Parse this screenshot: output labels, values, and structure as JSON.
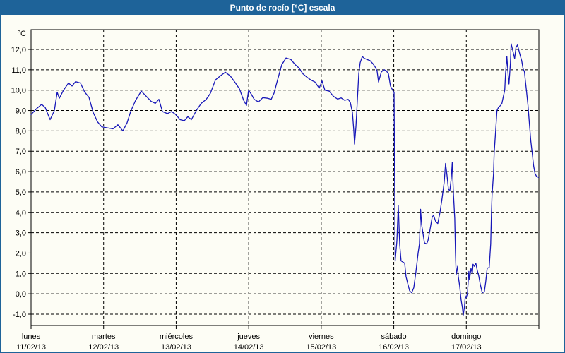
{
  "window": {
    "title": "Punto de rocío [°C] escala",
    "title_bar_color": "#1e6399",
    "background_color": "#fdfdf5",
    "border_color": "#1e6399"
  },
  "chart_data": {
    "type": "line",
    "title": "Punto de rocío [°C] escala",
    "ylabel": "°C",
    "xlabel": "",
    "ylim": [
      -1.55,
      13.0
    ],
    "y_gridline_range": [
      -1,
      12
    ],
    "y_tick_labels": [
      "12,0",
      "11,0",
      "10,0",
      "9,0",
      "8,0",
      "7,0",
      "6,0",
      "5,0",
      "4,0",
      "3,0",
      "2,0",
      "1,0",
      "0,0",
      "-1,0"
    ],
    "y_tick_values": [
      12,
      11,
      10,
      9,
      8,
      7,
      6,
      5,
      4,
      3,
      2,
      1,
      0,
      -1
    ],
    "grid": "dashed",
    "legend": "none",
    "line_color": "#1717b8",
    "grid_color": "#000000",
    "x_days": [
      {
        "weekday": "lunes",
        "date": "11/02/13"
      },
      {
        "weekday": "martes",
        "date": "12/02/13"
      },
      {
        "weekday": "miércoles",
        "date": "13/02/13"
      },
      {
        "weekday": "jueves",
        "date": "14/02/13"
      },
      {
        "weekday": "viernes",
        "date": "15/02/13"
      },
      {
        "weekday": "sábado",
        "date": "16/02/13"
      },
      {
        "weekday": "domingo",
        "date": "17/02/13"
      }
    ],
    "series": [
      {
        "name": "Punto de rocío",
        "x_unit": "days_from_2013-02-11",
        "y_unit": "°C",
        "points": [
          [
            0.0,
            8.8
          ],
          [
            0.078,
            9.1
          ],
          [
            0.146,
            9.3
          ],
          [
            0.195,
            9.15
          ],
          [
            0.263,
            8.55
          ],
          [
            0.321,
            9.0
          ],
          [
            0.36,
            9.9
          ],
          [
            0.389,
            9.6
          ],
          [
            0.448,
            10.0
          ],
          [
            0.516,
            10.35
          ],
          [
            0.565,
            10.2
          ],
          [
            0.613,
            10.42
          ],
          [
            0.681,
            10.35
          ],
          [
            0.74,
            9.9
          ],
          [
            0.798,
            9.65
          ],
          [
            0.857,
            8.9
          ],
          [
            0.915,
            8.45
          ],
          [
            0.974,
            8.2
          ],
          [
            1.051,
            8.15
          ],
          [
            1.129,
            8.1
          ],
          [
            1.197,
            8.3
          ],
          [
            1.266,
            8.0
          ],
          [
            1.324,
            8.4
          ],
          [
            1.373,
            8.95
          ],
          [
            1.441,
            9.5
          ],
          [
            1.519,
            9.95
          ],
          [
            1.587,
            9.7
          ],
          [
            1.655,
            9.45
          ],
          [
            1.713,
            9.35
          ],
          [
            1.762,
            9.55
          ],
          [
            1.811,
            8.95
          ],
          [
            1.879,
            8.85
          ],
          [
            1.937,
            8.95
          ],
          [
            1.996,
            8.8
          ],
          [
            2.054,
            8.55
          ],
          [
            2.113,
            8.5
          ],
          [
            2.161,
            8.7
          ],
          [
            2.21,
            8.55
          ],
          [
            2.278,
            9.0
          ],
          [
            2.346,
            9.35
          ],
          [
            2.414,
            9.55
          ],
          [
            2.473,
            9.85
          ],
          [
            2.541,
            10.5
          ],
          [
            2.609,
            10.7
          ],
          [
            2.677,
            10.88
          ],
          [
            2.745,
            10.7
          ],
          [
            2.804,
            10.42
          ],
          [
            2.872,
            10.07
          ],
          [
            2.93,
            9.5
          ],
          [
            2.969,
            9.25
          ],
          [
            2.999,
            10.0
          ],
          [
            3.037,
            9.8
          ],
          [
            3.076,
            9.55
          ],
          [
            3.135,
            9.42
          ],
          [
            3.193,
            9.63
          ],
          [
            3.261,
            9.6
          ],
          [
            3.31,
            9.55
          ],
          [
            3.349,
            9.85
          ],
          [
            3.398,
            10.5
          ],
          [
            3.456,
            11.25
          ],
          [
            3.515,
            11.58
          ],
          [
            3.583,
            11.5
          ],
          [
            3.641,
            11.25
          ],
          [
            3.69,
            11.1
          ],
          [
            3.748,
            10.8
          ],
          [
            3.797,
            10.65
          ],
          [
            3.856,
            10.5
          ],
          [
            3.914,
            10.4
          ],
          [
            3.972,
            10.1
          ],
          [
            4.011,
            10.45
          ],
          [
            4.05,
            10.0
          ],
          [
            4.109,
            9.95
          ],
          [
            4.167,
            9.7
          ],
          [
            4.225,
            9.56
          ],
          [
            4.274,
            9.62
          ],
          [
            4.323,
            9.5
          ],
          [
            4.371,
            9.55
          ],
          [
            4.401,
            9.4
          ],
          [
            4.43,
            8.9
          ],
          [
            4.449,
            8.0
          ],
          [
            4.459,
            7.35
          ],
          [
            4.478,
            8.2
          ],
          [
            4.498,
            9.5
          ],
          [
            4.517,
            10.8
          ],
          [
            4.537,
            11.35
          ],
          [
            4.566,
            11.65
          ],
          [
            4.595,
            11.56
          ],
          [
            4.634,
            11.5
          ],
          [
            4.673,
            11.45
          ],
          [
            4.712,
            11.3
          ],
          [
            4.741,
            11.15
          ],
          [
            4.77,
            10.95
          ],
          [
            4.79,
            10.4
          ],
          [
            4.829,
            10.9
          ],
          [
            4.868,
            11.0
          ],
          [
            4.897,
            10.95
          ],
          [
            4.926,
            10.8
          ],
          [
            4.955,
            10.2
          ],
          [
            4.985,
            10.0
          ],
          [
            5.004,
            9.9
          ],
          [
            5.019,
            1.6
          ],
          [
            5.043,
            2.6
          ],
          [
            5.062,
            4.35
          ],
          [
            5.082,
            2.4
          ],
          [
            5.101,
            1.62
          ],
          [
            5.13,
            1.55
          ],
          [
            5.15,
            1.5
          ],
          [
            5.169,
            0.85
          ],
          [
            5.189,
            0.55
          ],
          [
            5.218,
            0.15
          ],
          [
            5.247,
            0.05
          ],
          [
            5.276,
            0.3
          ],
          [
            5.306,
            1.1
          ],
          [
            5.335,
            2.0
          ],
          [
            5.354,
            2.45
          ],
          [
            5.369,
            4.15
          ],
          [
            5.384,
            3.4
          ],
          [
            5.403,
            2.95
          ],
          [
            5.423,
            2.5
          ],
          [
            5.452,
            2.45
          ],
          [
            5.471,
            2.6
          ],
          [
            5.5,
            3.15
          ],
          [
            5.53,
            3.78
          ],
          [
            5.549,
            3.85
          ],
          [
            5.578,
            3.55
          ],
          [
            5.607,
            3.45
          ],
          [
            5.637,
            4.0
          ],
          [
            5.666,
            4.7
          ],
          [
            5.695,
            5.5
          ],
          [
            5.714,
            6.4
          ],
          [
            5.734,
            5.8
          ],
          [
            5.753,
            5.15
          ],
          [
            5.772,
            5.05
          ],
          [
            5.792,
            5.65
          ],
          [
            5.806,
            6.45
          ],
          [
            5.821,
            5.0
          ],
          [
            5.84,
            3.7
          ],
          [
            5.85,
            2.0
          ],
          [
            5.86,
            0.95
          ],
          [
            5.879,
            1.35
          ],
          [
            5.889,
            0.85
          ],
          [
            5.908,
            0.4
          ],
          [
            5.928,
            -0.3
          ],
          [
            5.947,
            -0.7
          ],
          [
            5.957,
            -1.05
          ],
          [
            5.976,
            -0.6
          ],
          [
            5.986,
            -0.1
          ],
          [
            5.996,
            -0.2
          ],
          [
            6.015,
            0.0
          ],
          [
            6.035,
            1.1
          ],
          [
            6.044,
            0.7
          ],
          [
            6.064,
            1.25
          ],
          [
            6.083,
            1.0
          ],
          [
            6.093,
            1.45
          ],
          [
            6.112,
            1.35
          ],
          [
            6.132,
            1.5
          ],
          [
            6.151,
            1.15
          ],
          [
            6.171,
            0.9
          ],
          [
            6.19,
            0.5
          ],
          [
            6.219,
            0.05
          ],
          [
            6.248,
            0.1
          ],
          [
            6.268,
            0.6
          ],
          [
            6.287,
            1.25
          ],
          [
            6.316,
            1.3
          ],
          [
            6.336,
            2.45
          ],
          [
            6.346,
            3.9
          ],
          [
            6.355,
            4.85
          ],
          [
            6.375,
            5.9
          ],
          [
            6.384,
            6.9
          ],
          [
            6.404,
            8.0
          ],
          [
            6.423,
            9.0
          ],
          [
            6.443,
            9.15
          ],
          [
            6.472,
            9.25
          ],
          [
            6.491,
            9.35
          ],
          [
            6.511,
            9.7
          ],
          [
            6.53,
            10.0
          ],
          [
            6.54,
            10.8
          ],
          [
            6.559,
            11.65
          ],
          [
            6.579,
            10.6
          ],
          [
            6.588,
            10.3
          ],
          [
            6.608,
            11.3
          ],
          [
            6.617,
            12.28
          ],
          [
            6.637,
            12.0
          ],
          [
            6.656,
            11.7
          ],
          [
            6.666,
            11.55
          ],
          [
            6.685,
            12.1
          ],
          [
            6.705,
            12.22
          ],
          [
            6.724,
            11.95
          ],
          [
            6.743,
            11.7
          ],
          [
            6.763,
            11.45
          ],
          [
            6.782,
            11.05
          ],
          [
            6.801,
            10.9
          ],
          [
            6.811,
            10.55
          ],
          [
            6.83,
            9.95
          ],
          [
            6.85,
            9.25
          ],
          [
            6.869,
            8.4
          ],
          [
            6.889,
            7.5
          ],
          [
            6.908,
            6.9
          ],
          [
            6.927,
            6.3
          ],
          [
            6.947,
            5.9
          ],
          [
            6.966,
            5.78
          ],
          [
            6.995,
            5.72
          ]
        ]
      }
    ]
  }
}
